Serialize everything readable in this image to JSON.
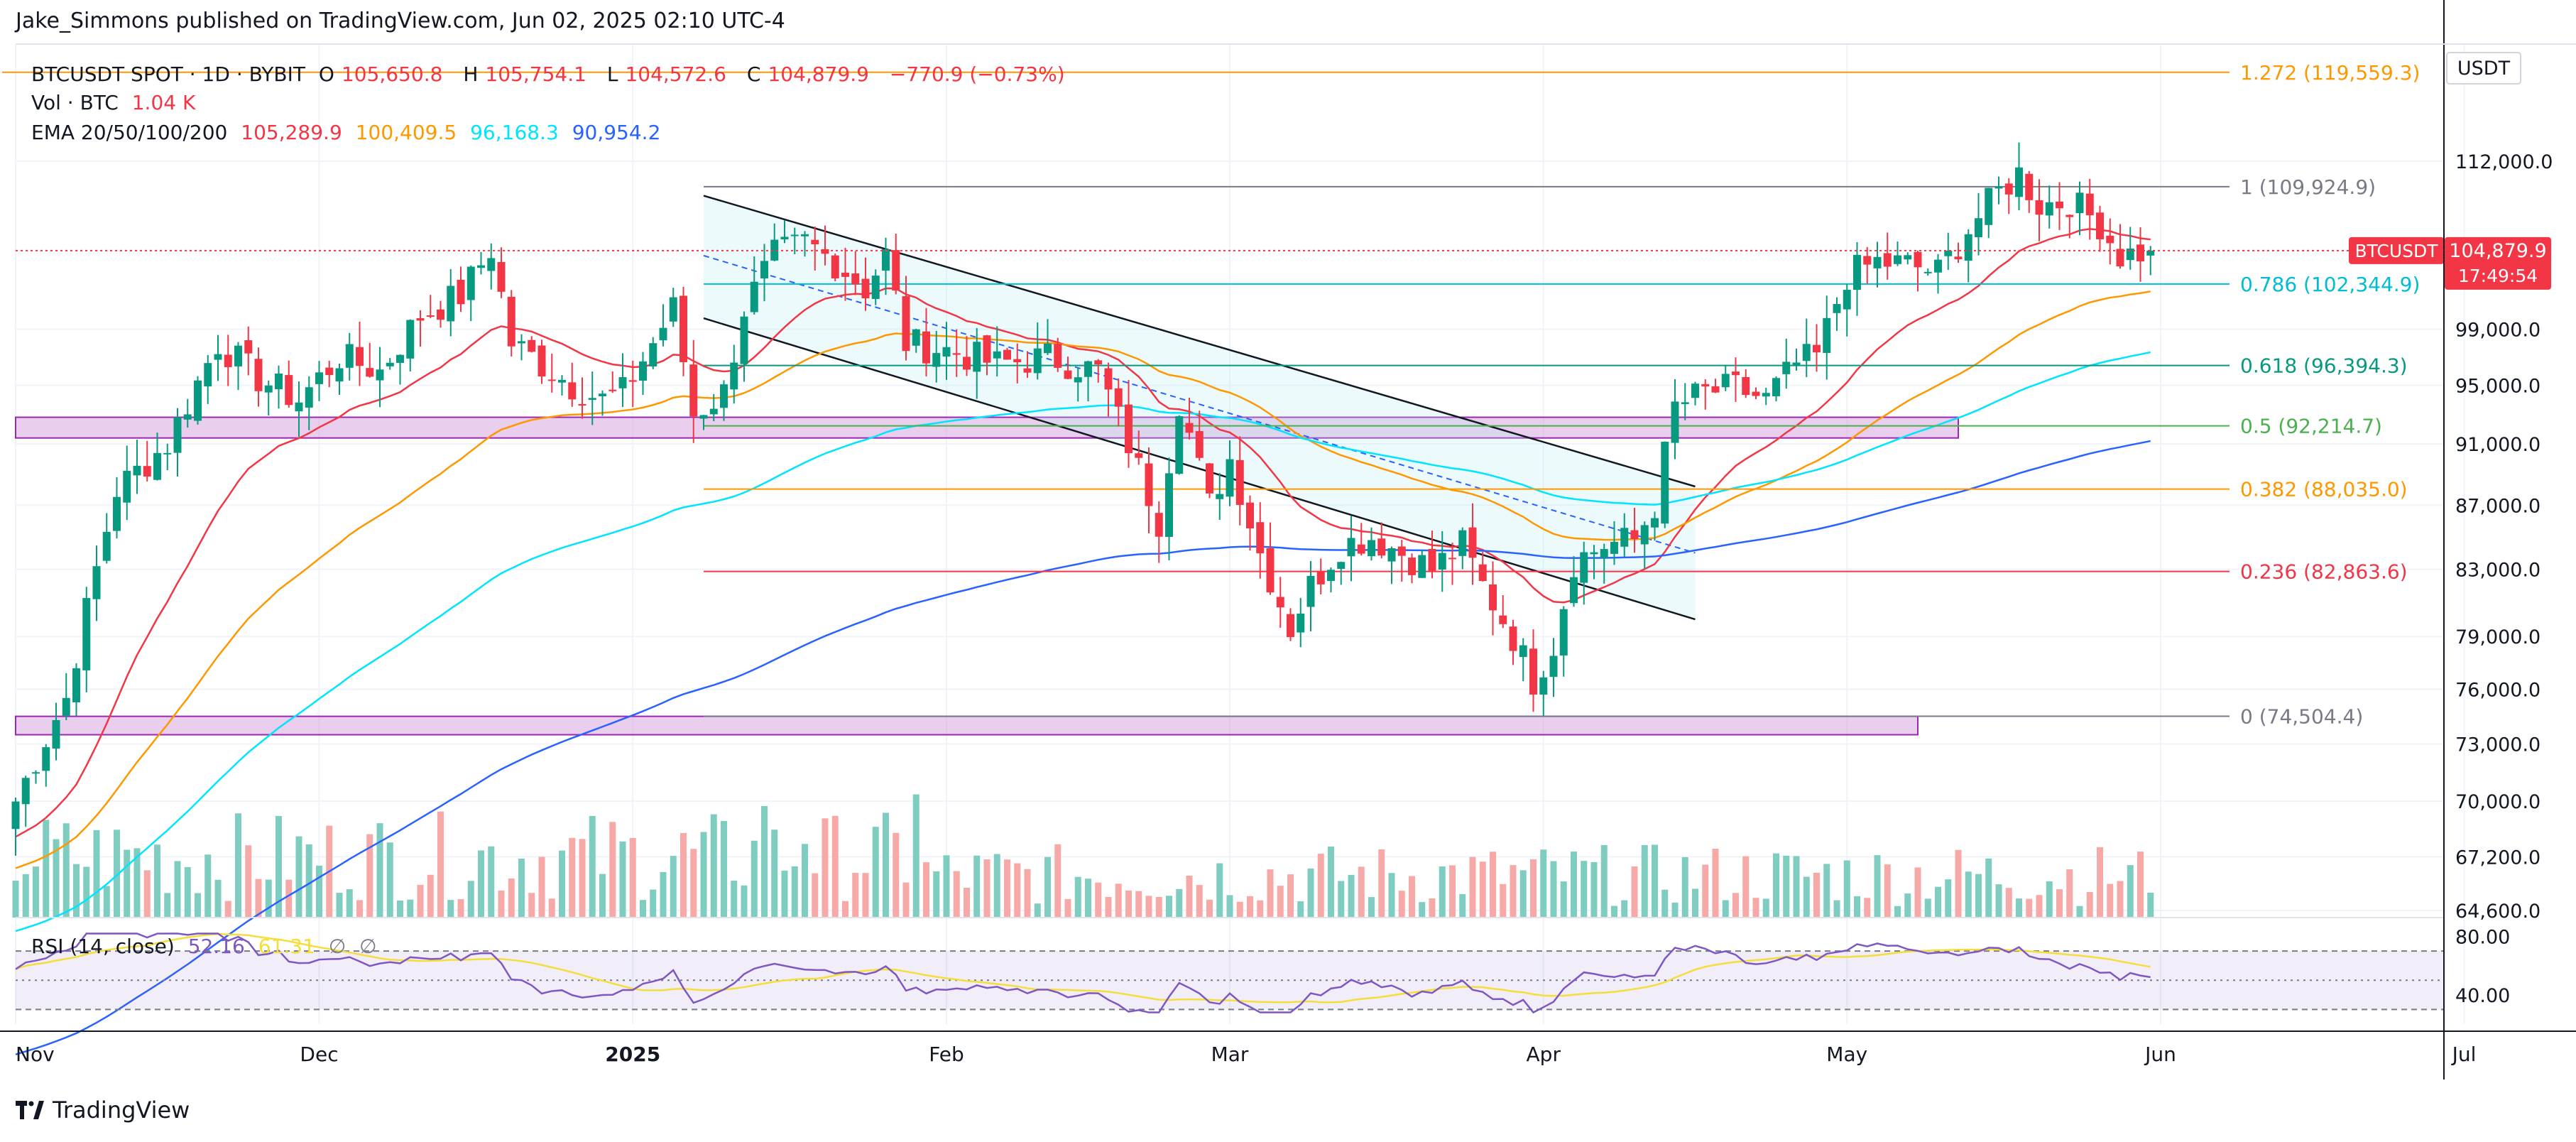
{
  "header": {
    "publisher": "Jake_Simmons published on TradingView.com, Jun 02, 2025 02:10 UTC-4"
  },
  "legend": {
    "symbol": "BTCUSDT SPOT · 1D · BYBIT",
    "o_label": "O",
    "o": "105,650.8",
    "h_label": "H",
    "h": "105,754.1",
    "l_label": "L",
    "l": "104,572.6",
    "c_label": "C",
    "c": "104,879.9",
    "change": "−770.9 (−0.73%)",
    "vol_label": "Vol · BTC",
    "vol": "1.04 K",
    "ema_label": "EMA 20/50/100/200",
    "ema20": "105,289.9",
    "ema50": "100,409.5",
    "ema100": "96,168.3",
    "ema200": "90,954.2",
    "rsi_label": "RSI (14, close)",
    "rsi": "52.16",
    "rsi_ma": "61.31",
    "rsi_na1": "∅",
    "rsi_na2": "∅"
  },
  "colors": {
    "up": "#089981",
    "down": "#f23645",
    "ema20": "#f23645",
    "ema50": "#ff9800",
    "ema100": "#00e5ff",
    "ema200": "#2962ff",
    "rsi": "#7e57c2",
    "rsi_ma": "#f5de3b"
  },
  "currency": "USDT",
  "last_price": {
    "symbol": "BTCUSDT",
    "price": "104,879.9",
    "countdown": "17:49:54"
  },
  "footer": {
    "brand": "TradingView"
  },
  "chart_data": {
    "type": "candlestick",
    "title": "BTCUSDT SPOT · 1D · BYBIT",
    "ylim": [
      64600,
      119559
    ],
    "price_ticks": [
      "112,000.0",
      "99,000.0",
      "95,000.0",
      "91,000.0",
      "87,000.0",
      "83,000.0",
      "79,000.0",
      "76,000.0",
      "73,000.0",
      "70,000.0",
      "67,200.0",
      "64,600.0"
    ],
    "rsi_ticks": [
      "80.00",
      "40.00"
    ],
    "time_labels": [
      {
        "label": "Nov",
        "bold": false
      },
      {
        "label": "Dec",
        "bold": false
      },
      {
        "label": "2025",
        "bold": true
      },
      {
        "label": "Feb",
        "bold": false
      },
      {
        "label": "Mar",
        "bold": false
      },
      {
        "label": "Apr",
        "bold": false
      },
      {
        "label": "May",
        "bold": false
      },
      {
        "label": "Jun",
        "bold": false
      },
      {
        "label": "Jul",
        "bold": false
      }
    ],
    "fib_levels": [
      {
        "ratio": "1.272",
        "price": 119559.3,
        "label": "1.272 (119,559.3)",
        "color": "#ff9800"
      },
      {
        "ratio": "1",
        "price": 109924.9,
        "label": "1 (109,924.9)",
        "color": "#787b86"
      },
      {
        "ratio": "0.786",
        "price": 102344.9,
        "label": "0.786 (102,344.9)",
        "color": "#00bcd4"
      },
      {
        "ratio": "0.618",
        "price": 96394.3,
        "label": "0.618 (96,394.3)",
        "color": "#089981"
      },
      {
        "ratio": "0.5",
        "price": 92214.7,
        "label": "0.5 (92,214.7)",
        "color": "#4caf50"
      },
      {
        "ratio": "0.382",
        "price": 88035.0,
        "label": "0.382 (88,035.0)",
        "color": "#ff9800"
      },
      {
        "ratio": "0.236",
        "price": 82863.6,
        "label": "0.236 (82,863.6)",
        "color": "#f23645"
      },
      {
        "ratio": "0",
        "price": 74504.4,
        "label": "0 (74,504.4)",
        "color": "#787b86"
      }
    ],
    "zones": [
      {
        "name": "support-zone-92k",
        "from_day": -20,
        "to_day": 192,
        "low": 91400,
        "high": 92800
      },
      {
        "name": "support-zone-74k",
        "from_day": -40,
        "to_day": 188,
        "low": 73500,
        "high": 74500
      }
    ],
    "channel": {
      "upper": [
        {
          "day": 68,
          "price": 109200
        },
        {
          "day": 166,
          "price": 88200
        }
      ],
      "lower": [
        {
          "day": 68,
          "price": 99800
        },
        {
          "day": 166,
          "price": 80000
        }
      ],
      "mid": [
        {
          "day": 68,
          "price": 104500
        },
        {
          "day": 166,
          "price": 84000
        }
      ]
    },
    "anchors": [
      {
        "day": 0,
        "price": 70000
      },
      {
        "day": 5,
        "price": 75500
      },
      {
        "day": 10,
        "price": 88000
      },
      {
        "day": 15,
        "price": 91000
      },
      {
        "day": 20,
        "price": 98000
      },
      {
        "day": 24,
        "price": 95500
      },
      {
        "day": 28,
        "price": 94000
      },
      {
        "day": 32,
        "price": 97000
      },
      {
        "day": 36,
        "price": 96000
      },
      {
        "day": 40,
        "price": 100000
      },
      {
        "day": 44,
        "price": 101500
      },
      {
        "day": 47,
        "price": 105000
      },
      {
        "day": 49,
        "price": 98000
      },
      {
        "day": 52,
        "price": 96500
      },
      {
        "day": 55,
        "price": 95000
      },
      {
        "day": 58,
        "price": 94000
      },
      {
        "day": 60,
        "price": 94500
      },
      {
        "day": 63,
        "price": 98000
      },
      {
        "day": 65,
        "price": 100500
      },
      {
        "day": 67,
        "price": 93000
      },
      {
        "day": 70,
        "price": 94500
      },
      {
        "day": 72,
        "price": 100500
      },
      {
        "day": 75,
        "price": 104500
      },
      {
        "day": 78,
        "price": 105500
      },
      {
        "day": 81,
        "price": 104000
      },
      {
        "day": 84,
        "price": 102000
      },
      {
        "day": 86,
        "price": 104500
      },
      {
        "day": 88,
        "price": 98000
      },
      {
        "day": 92,
        "price": 97500
      },
      {
        "day": 97,
        "price": 96500
      },
      {
        "day": 102,
        "price": 97000
      },
      {
        "day": 107,
        "price": 96000
      },
      {
        "day": 110,
        "price": 91000
      },
      {
        "day": 113,
        "price": 86000
      },
      {
        "day": 115,
        "price": 94000
      },
      {
        "day": 118,
        "price": 87000
      },
      {
        "day": 120,
        "price": 90000
      },
      {
        "day": 123,
        "price": 84000
      },
      {
        "day": 126,
        "price": 79500
      },
      {
        "day": 128,
        "price": 82000
      },
      {
        "day": 131,
        "price": 84500
      },
      {
        "day": 134,
        "price": 85000
      },
      {
        "day": 137,
        "price": 84000
      },
      {
        "day": 140,
        "price": 83000
      },
      {
        "day": 143,
        "price": 84500
      },
      {
        "day": 145,
        "price": 82000
      },
      {
        "day": 148,
        "price": 79000
      },
      {
        "day": 150,
        "price": 76500
      },
      {
        "day": 152,
        "price": 78500
      },
      {
        "day": 154,
        "price": 83500
      },
      {
        "day": 157,
        "price": 84500
      },
      {
        "day": 160,
        "price": 84800
      },
      {
        "day": 162,
        "price": 87000
      },
      {
        "day": 164,
        "price": 93500
      },
      {
        "day": 167,
        "price": 94500
      },
      {
        "day": 170,
        "price": 94800
      },
      {
        "day": 173,
        "price": 94000
      },
      {
        "day": 176,
        "price": 96500
      },
      {
        "day": 178,
        "price": 97000
      },
      {
        "day": 181,
        "price": 103000
      },
      {
        "day": 184,
        "price": 104000
      },
      {
        "day": 187,
        "price": 103800
      },
      {
        "day": 190,
        "price": 103200
      },
      {
        "day": 193,
        "price": 106500
      },
      {
        "day": 196,
        "price": 109500
      },
      {
        "day": 198,
        "price": 111000
      },
      {
        "day": 200,
        "price": 108500
      },
      {
        "day": 203,
        "price": 108800
      },
      {
        "day": 206,
        "price": 107000
      },
      {
        "day": 208,
        "price": 104500
      },
      {
        "day": 211,
        "price": 104880
      }
    ],
    "date_markers": [
      {
        "label": "Nov",
        "day": 0
      },
      {
        "label": "Dec",
        "day": 30
      },
      {
        "label": "2025",
        "day": 61
      },
      {
        "label": "Feb",
        "day": 92
      },
      {
        "label": "Mar",
        "day": 120
      },
      {
        "label": "Apr",
        "day": 151
      },
      {
        "label": "May",
        "day": 181
      },
      {
        "label": "Jun",
        "day": 212
      },
      {
        "label": "Jul",
        "day": 242
      }
    ],
    "ema_start": {
      "ema20": 68000,
      "ema50": 66500,
      "ema100": 63500,
      "ema200": 58000
    },
    "rsi_ylim": [
      20,
      90
    ]
  }
}
